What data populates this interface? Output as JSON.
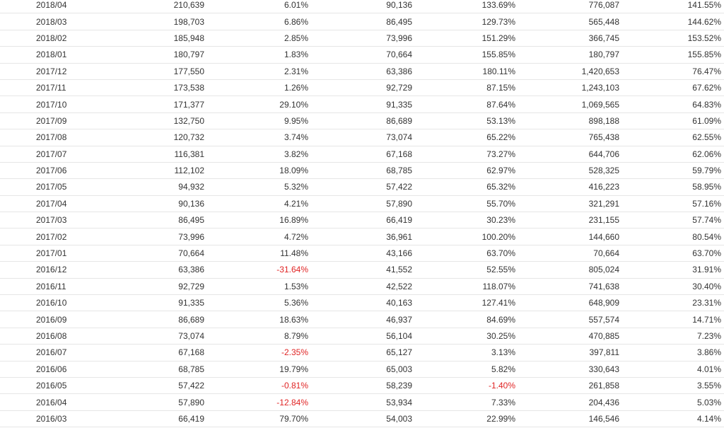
{
  "colors": {
    "negative": "#e02424",
    "text": "#333333",
    "row_border": "#e6e6e6"
  },
  "table": {
    "rows": [
      [
        "2018/04",
        "210,639",
        "6.01%",
        "90,136",
        "133.69%",
        "776,087",
        "141.55%"
      ],
      [
        "2018/03",
        "198,703",
        "6.86%",
        "86,495",
        "129.73%",
        "565,448",
        "144.62%"
      ],
      [
        "2018/02",
        "185,948",
        "2.85%",
        "73,996",
        "151.29%",
        "366,745",
        "153.52%"
      ],
      [
        "2018/01",
        "180,797",
        "1.83%",
        "70,664",
        "155.85%",
        "180,797",
        "155.85%"
      ],
      [
        "2017/12",
        "177,550",
        "2.31%",
        "63,386",
        "180.11%",
        "1,420,653",
        "76.47%"
      ],
      [
        "2017/11",
        "173,538",
        "1.26%",
        "92,729",
        "87.15%",
        "1,243,103",
        "67.62%"
      ],
      [
        "2017/10",
        "171,377",
        "29.10%",
        "91,335",
        "87.64%",
        "1,069,565",
        "64.83%"
      ],
      [
        "2017/09",
        "132,750",
        "9.95%",
        "86,689",
        "53.13%",
        "898,188",
        "61.09%"
      ],
      [
        "2017/08",
        "120,732",
        "3.74%",
        "73,074",
        "65.22%",
        "765,438",
        "62.55%"
      ],
      [
        "2017/07",
        "116,381",
        "3.82%",
        "67,168",
        "73.27%",
        "644,706",
        "62.06%"
      ],
      [
        "2017/06",
        "112,102",
        "18.09%",
        "68,785",
        "62.97%",
        "528,325",
        "59.79%"
      ],
      [
        "2017/05",
        "94,932",
        "5.32%",
        "57,422",
        "65.32%",
        "416,223",
        "58.95%"
      ],
      [
        "2017/04",
        "90,136",
        "4.21%",
        "57,890",
        "55.70%",
        "321,291",
        "57.16%"
      ],
      [
        "2017/03",
        "86,495",
        "16.89%",
        "66,419",
        "30.23%",
        "231,155",
        "57.74%"
      ],
      [
        "2017/02",
        "73,996",
        "4.72%",
        "36,961",
        "100.20%",
        "144,660",
        "80.54%"
      ],
      [
        "2017/01",
        "70,664",
        "11.48%",
        "43,166",
        "63.70%",
        "70,664",
        "63.70%"
      ],
      [
        "2016/12",
        "63,386",
        "-31.64%",
        "41,552",
        "52.55%",
        "805,024",
        "31.91%"
      ],
      [
        "2016/11",
        "92,729",
        "1.53%",
        "42,522",
        "118.07%",
        "741,638",
        "30.40%"
      ],
      [
        "2016/10",
        "91,335",
        "5.36%",
        "40,163",
        "127.41%",
        "648,909",
        "23.31%"
      ],
      [
        "2016/09",
        "86,689",
        "18.63%",
        "46,937",
        "84.69%",
        "557,574",
        "14.71%"
      ],
      [
        "2016/08",
        "73,074",
        "8.79%",
        "56,104",
        "30.25%",
        "470,885",
        "7.23%"
      ],
      [
        "2016/07",
        "67,168",
        "-2.35%",
        "65,127",
        "3.13%",
        "397,811",
        "3.86%"
      ],
      [
        "2016/06",
        "68,785",
        "19.79%",
        "65,003",
        "5.82%",
        "330,643",
        "4.01%"
      ],
      [
        "2016/05",
        "57,422",
        "-0.81%",
        "58,239",
        "-1.40%",
        "261,858",
        "3.55%"
      ],
      [
        "2016/04",
        "57,890",
        "-12.84%",
        "53,934",
        "7.33%",
        "204,436",
        "5.03%"
      ],
      [
        "2016/03",
        "66,419",
        "79.70%",
        "54,003",
        "22.99%",
        "146,546",
        "4.14%"
      ]
    ]
  }
}
